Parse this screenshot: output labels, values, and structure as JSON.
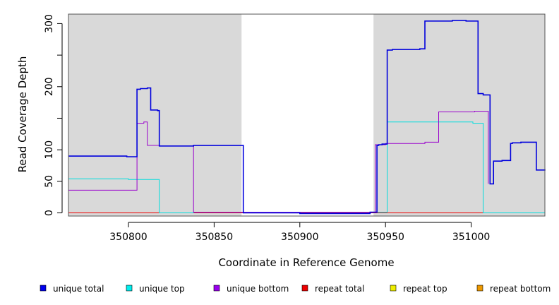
{
  "chart_data": {
    "type": "line",
    "xlabel": "Coordinate in Reference Genome",
    "ylabel": "Read Coverage Depth",
    "xlim": [
      350765,
      351043
    ],
    "ylim": [
      -5,
      315
    ],
    "x_ticks": [
      350800,
      350850,
      350900,
      350950,
      351000
    ],
    "x_tick_labels": [
      "350800",
      "350850",
      "350900",
      "350950",
      "351000"
    ],
    "y_ticks": [
      0,
      50,
      100,
      150,
      200,
      250,
      300
    ],
    "y_tick_labels": [
      "0",
      "50",
      "100",
      "",
      "200",
      "",
      "300"
    ],
    "shaded_regions": [
      {
        "x0": 350765,
        "x1": 350866
      },
      {
        "x0": 350943,
        "x1": 351043
      }
    ],
    "shade_color": "#d9d9d9",
    "series": [
      {
        "name": "unique total",
        "color": "#0000dd",
        "x": [
          350765,
          350798,
          350799,
          350804,
          350805,
          350807,
          350811,
          350813,
          350816,
          350817,
          350818,
          350837,
          350838,
          350866,
          350867,
          350899,
          350900,
          350940,
          350941,
          350944,
          350945,
          350946,
          350948,
          350950,
          350951,
          350954,
          350969,
          350970,
          350972,
          350973,
          350988,
          350989,
          350996,
          350997,
          351003,
          351004,
          351006,
          351007,
          351011,
          351012,
          351013,
          351017,
          351018,
          351020,
          351023,
          351024,
          351029,
          351030,
          351038,
          351039,
          351043
        ],
        "y": [
          90,
          90,
          89,
          89,
          196,
          197,
          198,
          163,
          163,
          162,
          106,
          106,
          107,
          107,
          0,
          0,
          -1,
          -1,
          1,
          1,
          107,
          108,
          109,
          109,
          258,
          259,
          259,
          260,
          260,
          304,
          304,
          305,
          305,
          304,
          304,
          189,
          189,
          187,
          46,
          46,
          82,
          82,
          83,
          83,
          110,
          111,
          112,
          112,
          68,
          68,
          69
        ]
      },
      {
        "name": "unique top",
        "color": "#00dddd",
        "x": [
          350765,
          350799,
          350800,
          350805,
          350817,
          350818,
          350837,
          350838,
          350866,
          350950,
          350951,
          351000,
          351001,
          351006,
          351007,
          351043
        ],
        "y": [
          54,
          54,
          53,
          53,
          53,
          0,
          0,
          1,
          1,
          1,
          144,
          144,
          142,
          142,
          0,
          0
        ],
        "endcap": 0
      },
      {
        "name": "unique bottom",
        "color": "#9900cc",
        "x": [
          350765,
          350804,
          350805,
          350809,
          350810,
          350811,
          350818,
          350837,
          350838,
          350866,
          350943,
          350944,
          350949,
          350950,
          350972,
          350973,
          350980,
          350981,
          350993,
          351002,
          351003,
          351010
        ],
        "y": [
          36,
          36,
          142,
          144,
          144,
          107,
          106,
          106,
          1,
          1,
          1,
          108,
          108,
          110,
          110,
          112,
          112,
          160,
          160,
          161,
          161,
          46
        ]
      },
      {
        "name": "repeat total",
        "color": "#ee0000",
        "x": [
          350765,
          351043
        ],
        "y": [
          0,
          0
        ]
      },
      {
        "name": "repeat top",
        "color": "#eeee00",
        "x": [
          350765,
          351043
        ],
        "y": [
          0,
          0
        ]
      },
      {
        "name": "repeat bottom",
        "color": "#ee9900",
        "x": [
          350765,
          351043
        ],
        "y": [
          0,
          0
        ]
      }
    ],
    "legend": {
      "placement": "bottom",
      "items": [
        {
          "label": "unique total",
          "color": "#0000ee"
        },
        {
          "label": "unique top",
          "color": "#00eeee"
        },
        {
          "label": "unique bottom",
          "color": "#9900ee"
        },
        {
          "label": "repeat total",
          "color": "#ee0000"
        },
        {
          "label": "repeat top",
          "color": "#eeee00"
        },
        {
          "label": "repeat bottom",
          "color": "#ee9900"
        }
      ]
    }
  }
}
